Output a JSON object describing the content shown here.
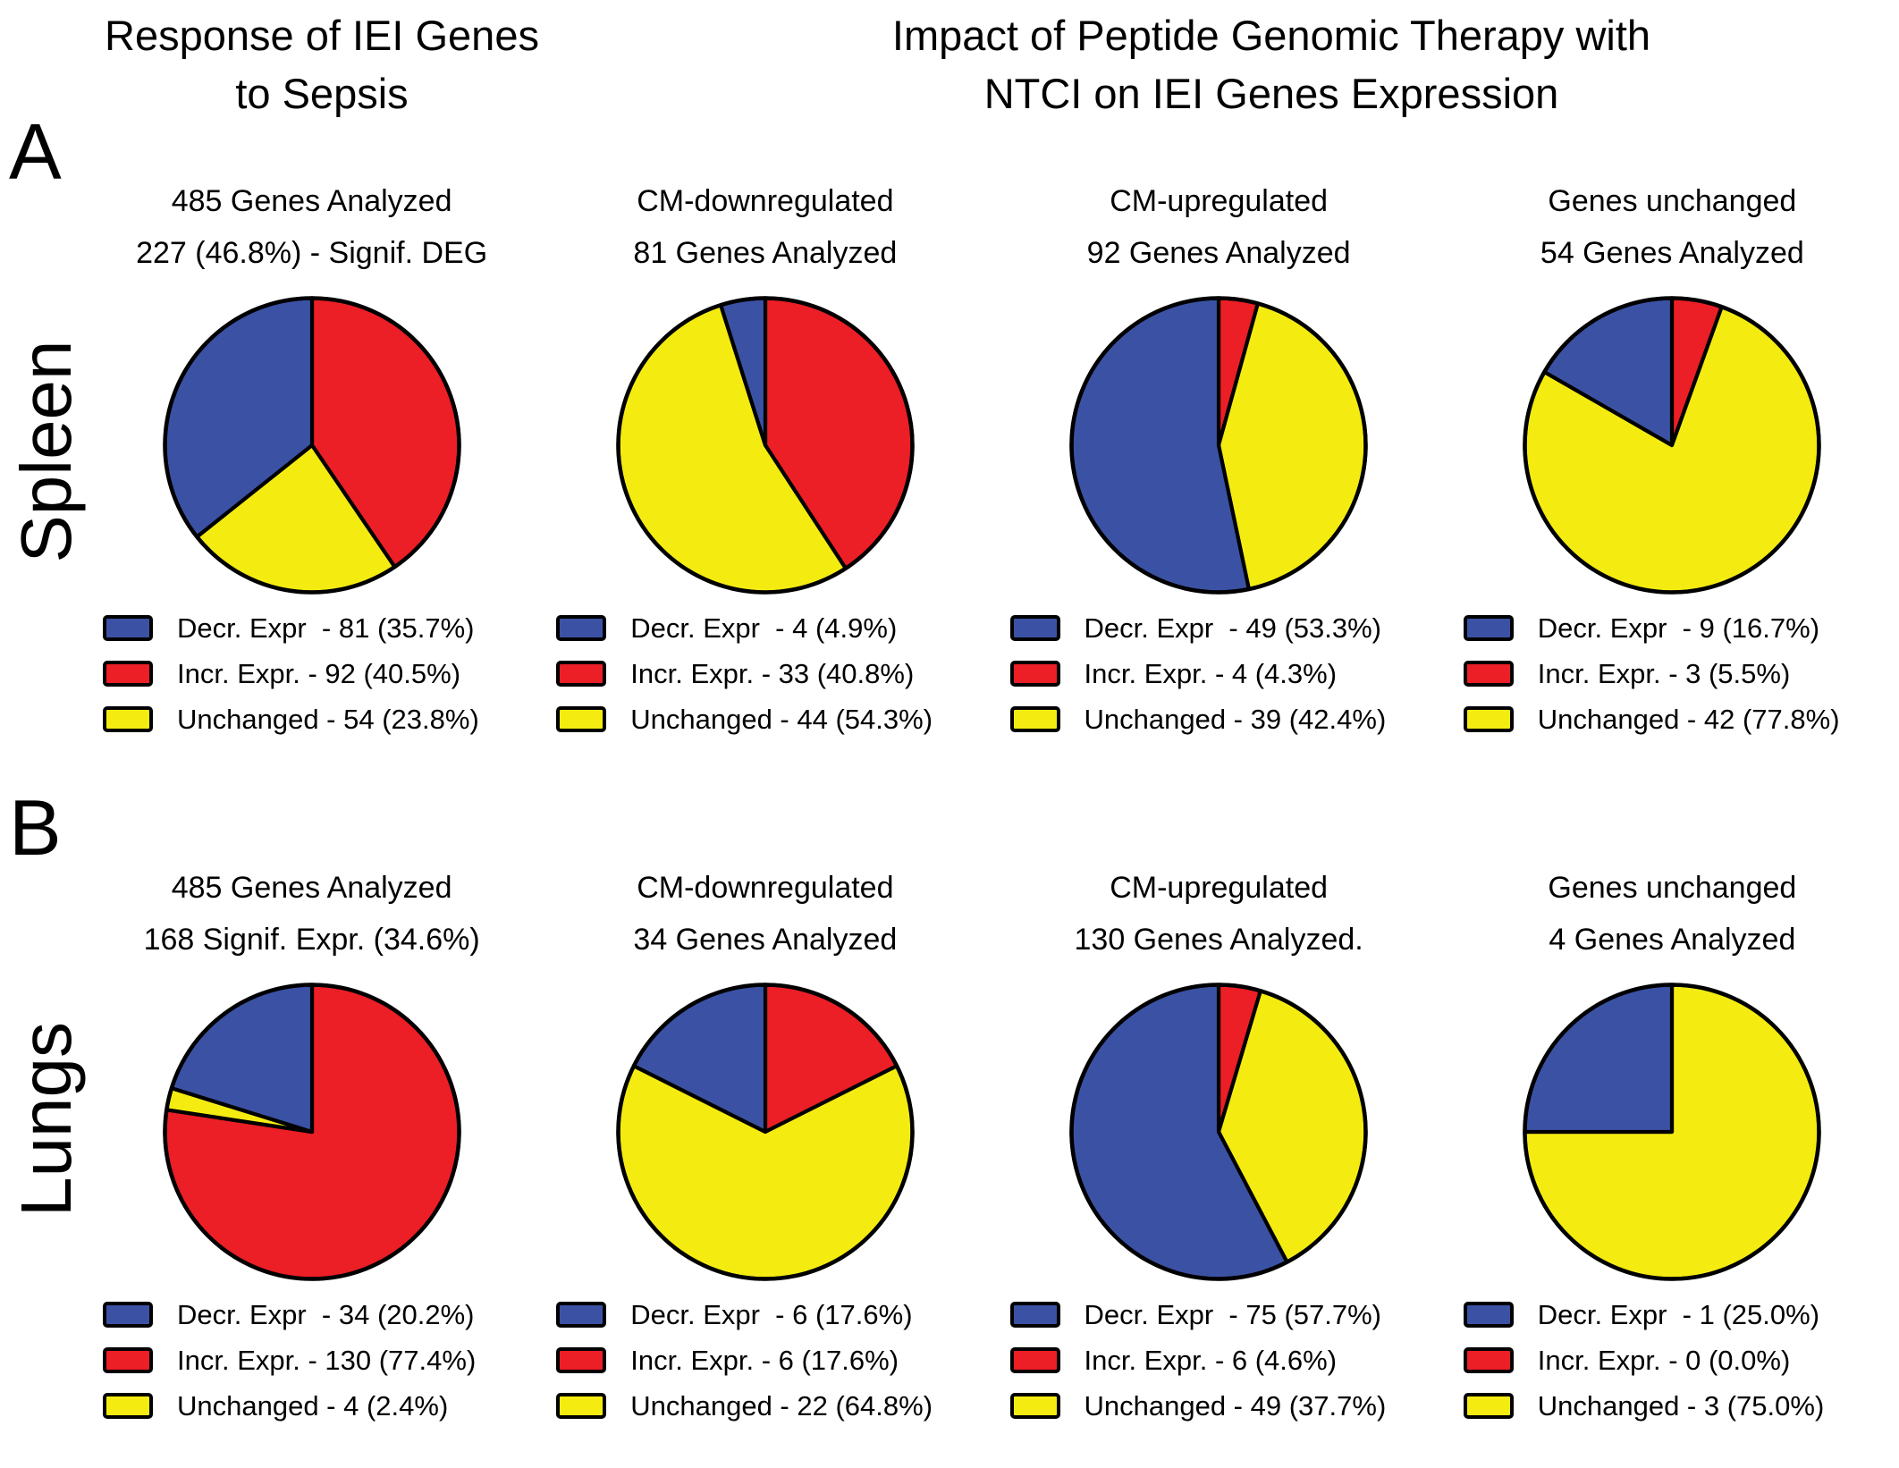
{
  "colors": {
    "decr": "#3B52A4",
    "incr": "#EC1E26",
    "unchanged": "#F4EC11",
    "outline": "#000000"
  },
  "header": {
    "left_title_line1": "Response of IEI Genes",
    "left_title_line2": "to Sepsis",
    "right_title_line1": "Impact of Peptide Genomic Therapy with",
    "right_title_line2": "NTCI on IEI Genes Expression"
  },
  "sections": [
    {
      "panel_letter": "A",
      "organ": "Spleen"
    },
    {
      "panel_letter": "B",
      "organ": "Lungs"
    }
  ],
  "chart_data": [
    {
      "type": "pie",
      "panel": "A",
      "organ": "Spleen",
      "title": "485 Genes Analyzed",
      "subtitle": "227 (46.8%) - Signif. DEG",
      "start_angle_deg": 0,
      "direction": "clockwise",
      "draw_order_clockwise_from_top": [
        "incr",
        "unchanged",
        "decr"
      ],
      "slices": [
        {
          "name": "Decr. Expr",
          "color_key": "decr",
          "count": 81,
          "pct": 35.7,
          "legend_label": "Decr. Expr  - 81 (35.7%)"
        },
        {
          "name": "Incr. Expr.",
          "color_key": "incr",
          "count": 92,
          "pct": 40.5,
          "legend_label": "Incr. Expr. - 92 (40.5%)"
        },
        {
          "name": "Unchanged",
          "color_key": "unchanged",
          "count": 54,
          "pct": 23.8,
          "legend_label": "Unchanged - 54 (23.8%)"
        }
      ]
    },
    {
      "type": "pie",
      "panel": "A",
      "organ": "Spleen",
      "title": "CM-downregulated",
      "subtitle": "81 Genes Analyzed",
      "start_angle_deg": 0,
      "direction": "clockwise",
      "draw_order_clockwise_from_top": [
        "incr",
        "unchanged",
        "decr"
      ],
      "slices": [
        {
          "name": "Decr. Expr",
          "color_key": "decr",
          "count": 4,
          "pct": 4.9,
          "legend_label": "Decr. Expr  - 4 (4.9%)"
        },
        {
          "name": "Incr. Expr.",
          "color_key": "incr",
          "count": 33,
          "pct": 40.8,
          "legend_label": "Incr. Expr. - 33 (40.8%)"
        },
        {
          "name": "Unchanged",
          "color_key": "unchanged",
          "count": 44,
          "pct": 54.3,
          "legend_label": "Unchanged - 44 (54.3%)"
        }
      ]
    },
    {
      "type": "pie",
      "panel": "A",
      "organ": "Spleen",
      "title": "CM-upregulated",
      "subtitle": "92 Genes Analyzed",
      "start_angle_deg": 0,
      "direction": "clockwise",
      "draw_order_clockwise_from_top": [
        "incr",
        "unchanged",
        "decr"
      ],
      "slices": [
        {
          "name": "Decr. Expr",
          "color_key": "decr",
          "count": 49,
          "pct": 53.3,
          "legend_label": "Decr. Expr  - 49 (53.3%)"
        },
        {
          "name": "Incr. Expr.",
          "color_key": "incr",
          "count": 4,
          "pct": 4.3,
          "legend_label": "Incr. Expr. - 4 (4.3%)"
        },
        {
          "name": "Unchanged",
          "color_key": "unchanged",
          "count": 39,
          "pct": 42.4,
          "legend_label": "Unchanged - 39 (42.4%)"
        }
      ]
    },
    {
      "type": "pie",
      "panel": "A",
      "organ": "Spleen",
      "title": "Genes unchanged",
      "subtitle": "54 Genes Analyzed",
      "start_angle_deg": 0,
      "direction": "clockwise",
      "draw_order_clockwise_from_top": [
        "incr",
        "unchanged",
        "decr"
      ],
      "slices": [
        {
          "name": "Decr. Expr",
          "color_key": "decr",
          "count": 9,
          "pct": 16.7,
          "legend_label": "Decr. Expr  - 9 (16.7%)"
        },
        {
          "name": "Incr. Expr.",
          "color_key": "incr",
          "count": 3,
          "pct": 5.5,
          "legend_label": "Incr. Expr. - 3 (5.5%)"
        },
        {
          "name": "Unchanged",
          "color_key": "unchanged",
          "count": 42,
          "pct": 77.8,
          "legend_label": "Unchanged - 42 (77.8%)"
        }
      ]
    },
    {
      "type": "pie",
      "panel": "B",
      "organ": "Lungs",
      "title": "485 Genes Analyzed",
      "subtitle": "168 Signif. Expr. (34.6%)",
      "start_angle_deg": 0,
      "direction": "clockwise",
      "draw_order_clockwise_from_top": [
        "incr",
        "unchanged",
        "decr"
      ],
      "slices": [
        {
          "name": "Decr. Expr",
          "color_key": "decr",
          "count": 34,
          "pct": 20.2,
          "legend_label": "Decr. Expr  - 34 (20.2%)"
        },
        {
          "name": "Incr. Expr.",
          "color_key": "incr",
          "count": 130,
          "pct": 77.4,
          "legend_label": "Incr. Expr. - 130 (77.4%)"
        },
        {
          "name": "Unchanged",
          "color_key": "unchanged",
          "count": 4,
          "pct": 2.4,
          "legend_label": "Unchanged - 4 (2.4%)"
        }
      ]
    },
    {
      "type": "pie",
      "panel": "B",
      "organ": "Lungs",
      "title": "CM-downregulated",
      "subtitle": "34 Genes Analyzed",
      "start_angle_deg": 0,
      "direction": "clockwise",
      "draw_order_clockwise_from_top": [
        "incr",
        "unchanged",
        "decr"
      ],
      "slices": [
        {
          "name": "Decr. Expr",
          "color_key": "decr",
          "count": 6,
          "pct": 17.6,
          "legend_label": "Decr. Expr  - 6 (17.6%)"
        },
        {
          "name": "Incr. Expr.",
          "color_key": "incr",
          "count": 6,
          "pct": 17.6,
          "legend_label": "Incr. Expr. - 6 (17.6%)"
        },
        {
          "name": "Unchanged",
          "color_key": "unchanged",
          "count": 22,
          "pct": 64.8,
          "legend_label": "Unchanged - 22 (64.8%)"
        }
      ]
    },
    {
      "type": "pie",
      "panel": "B",
      "organ": "Lungs",
      "title": "CM-upregulated",
      "subtitle": "130 Genes Analyzed.",
      "start_angle_deg": 0,
      "direction": "clockwise",
      "draw_order_clockwise_from_top": [
        "incr",
        "unchanged",
        "decr"
      ],
      "slices": [
        {
          "name": "Decr. Expr",
          "color_key": "decr",
          "count": 75,
          "pct": 57.7,
          "legend_label": "Decr. Expr  - 75 (57.7%)"
        },
        {
          "name": "Incr. Expr.",
          "color_key": "incr",
          "count": 6,
          "pct": 4.6,
          "legend_label": "Incr. Expr. - 6 (4.6%)"
        },
        {
          "name": "Unchanged",
          "color_key": "unchanged",
          "count": 49,
          "pct": 37.7,
          "legend_label": "Unchanged - 49 (37.7%)"
        }
      ]
    },
    {
      "type": "pie",
      "panel": "B",
      "organ": "Lungs",
      "title": "Genes unchanged",
      "subtitle": "4 Genes Analyzed",
      "start_angle_deg": 0,
      "direction": "clockwise",
      "draw_order_clockwise_from_top": [
        "incr",
        "unchanged",
        "decr"
      ],
      "slices": [
        {
          "name": "Decr. Expr",
          "color_key": "decr",
          "count": 1,
          "pct": 25.0,
          "legend_label": "Decr. Expr  - 1 (25.0%)"
        },
        {
          "name": "Incr. Expr.",
          "color_key": "incr",
          "count": 0,
          "pct": 0.0,
          "legend_label": "Incr. Expr. - 0 (0.0%)"
        },
        {
          "name": "Unchanged",
          "color_key": "unchanged",
          "count": 3,
          "pct": 75.0,
          "legend_label": "Unchanged - 3 (75.0%)"
        }
      ]
    }
  ]
}
